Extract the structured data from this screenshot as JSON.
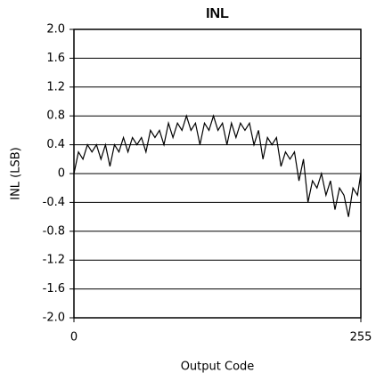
{
  "chart_data": {
    "type": "line",
    "title": "INL",
    "x_label": "Output Code",
    "y_label": "INL (LSB)",
    "xlim": [
      0,
      255
    ],
    "xticks": [
      0,
      255
    ],
    "ylim": [
      -2,
      2
    ],
    "yticks": [
      {
        "value": 2,
        "label": "2.0"
      },
      1.6,
      1.2,
      0.8,
      0.4,
      0,
      -0.4,
      -0.8,
      -1.2,
      -1.6,
      {
        "value": -2,
        "label": "-2.0"
      }
    ],
    "grid": true,
    "color": "#000000",
    "x": [
      0,
      4,
      8,
      12,
      16,
      20,
      24,
      28,
      32,
      36,
      40,
      44,
      48,
      52,
      56,
      60,
      64,
      68,
      72,
      76,
      80,
      84,
      88,
      92,
      96,
      100,
      104,
      108,
      112,
      116,
      120,
      124,
      128,
      132,
      136,
      140,
      144,
      148,
      152,
      156,
      160,
      164,
      168,
      172,
      176,
      180,
      184,
      188,
      192,
      196,
      200,
      204,
      208,
      212,
      216,
      220,
      224,
      228,
      232,
      236,
      240,
      244,
      248,
      252,
      255
    ],
    "values": [
      0.0,
      0.3,
      0.2,
      0.4,
      0.3,
      0.4,
      0.2,
      0.4,
      0.1,
      0.4,
      0.3,
      0.5,
      0.3,
      0.5,
      0.4,
      0.5,
      0.3,
      0.6,
      0.5,
      0.6,
      0.4,
      0.7,
      0.5,
      0.7,
      0.6,
      0.8,
      0.6,
      0.7,
      0.4,
      0.7,
      0.6,
      0.8,
      0.6,
      0.7,
      0.4,
      0.7,
      0.5,
      0.7,
      0.6,
      0.7,
      0.4,
      0.6,
      0.2,
      0.5,
      0.4,
      0.5,
      0.1,
      0.3,
      0.2,
      0.3,
      -0.1,
      0.2,
      -0.4,
      -0.1,
      -0.2,
      0.0,
      -0.3,
      -0.1,
      -0.5,
      -0.2,
      -0.3,
      -0.6,
      -0.2,
      -0.3,
      0.0
    ]
  }
}
